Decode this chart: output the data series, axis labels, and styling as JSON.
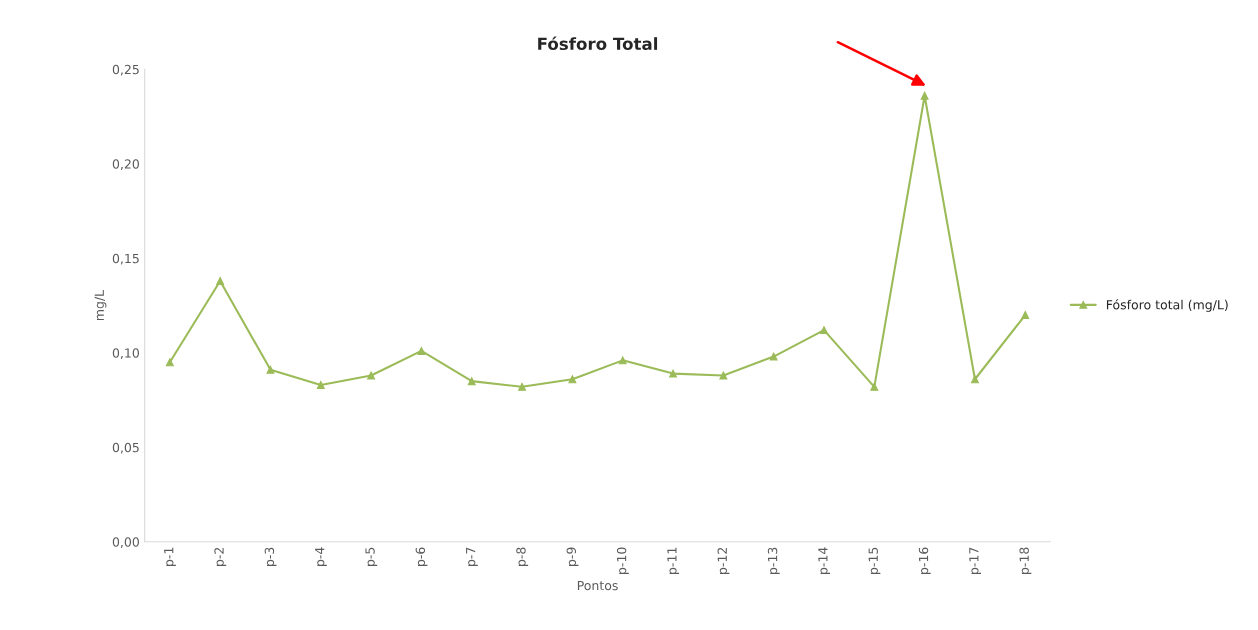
{
  "chart_data": {
    "type": "line",
    "title": "Fósforo Total",
    "xlabel": "Pontos",
    "ylabel": "mg/L",
    "categories": [
      "p-1",
      "p-2",
      "p-3",
      "p-4",
      "p-5",
      "p-6",
      "p-7",
      "p-8",
      "p-9",
      "p-10",
      "p-11",
      "p-12",
      "p-13",
      "p-14",
      "p-15",
      "p-16",
      "p-17",
      "p-18"
    ],
    "series": [
      {
        "name": "Fósforo total (mg/L)",
        "color": "#9bbb59",
        "values": [
          0.095,
          0.138,
          0.091,
          0.083,
          0.088,
          0.101,
          0.085,
          0.082,
          0.086,
          0.096,
          0.089,
          0.088,
          0.098,
          0.112,
          0.082,
          0.236,
          0.086,
          0.12
        ]
      }
    ],
    "ylim": [
      0,
      0.25
    ],
    "yticks": [
      {
        "value": 0,
        "label": "0,00"
      },
      {
        "value": 0.05,
        "label": "0,05"
      },
      {
        "value": 0.1,
        "label": "0,10"
      },
      {
        "value": 0.15,
        "label": "0,15"
      },
      {
        "value": 0.2,
        "label": "0,20"
      },
      {
        "value": 0.25,
        "label": "0,25"
      }
    ],
    "grid": false,
    "legend": "right",
    "marker": "triangle",
    "line_style": "solid"
  }
}
